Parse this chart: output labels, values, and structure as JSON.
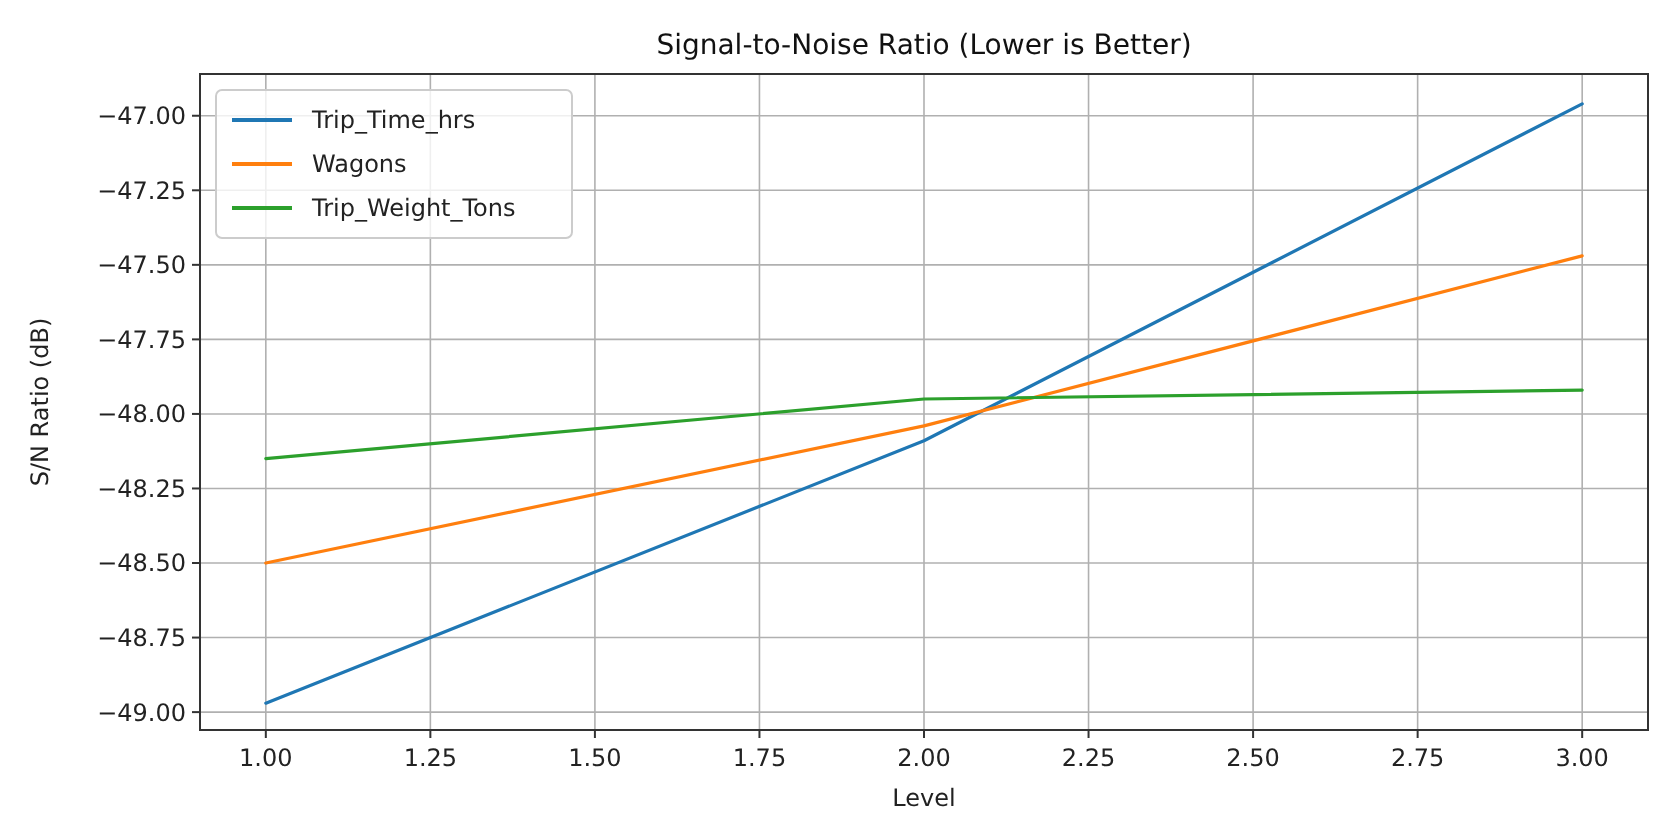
{
  "chart_data": {
    "type": "line",
    "title": "Signal-to-Noise Ratio (Lower is Better)",
    "xlabel": "Level",
    "ylabel": "S/N Ratio (dB)",
    "x": [
      1,
      2,
      3
    ],
    "series": [
      {
        "name": "Trip_Time_hrs",
        "color": "#1f77b4",
        "values": [
          -48.97,
          -48.09,
          -46.96
        ]
      },
      {
        "name": "Wagons",
        "color": "#ff7f0e",
        "values": [
          -48.5,
          -48.04,
          -47.47
        ]
      },
      {
        "name": "Trip_Weight_Tons",
        "color": "#2ca02c",
        "values": [
          -48.15,
          -47.95,
          -47.92
        ]
      }
    ],
    "xlim": [
      0.9,
      3.1
    ],
    "ylim": [
      -49.06,
      -46.86
    ],
    "xticks": [
      {
        "value": 1,
        "label": "1.00"
      },
      {
        "value": 1.25,
        "label": "1.25"
      },
      {
        "value": 1.5,
        "label": "1.50"
      },
      {
        "value": 1.75,
        "label": "1.75"
      },
      {
        "value": 2,
        "label": "2.00"
      },
      {
        "value": 2.25,
        "label": "2.25"
      },
      {
        "value": 2.5,
        "label": "2.50"
      },
      {
        "value": 2.75,
        "label": "2.75"
      },
      {
        "value": 3,
        "label": "3.00"
      }
    ],
    "yticks": [
      {
        "value": -49,
        "label": "−49.00"
      },
      {
        "value": -48.75,
        "label": "−48.75"
      },
      {
        "value": -48.5,
        "label": "−48.50"
      },
      {
        "value": -48.25,
        "label": "−48.25"
      },
      {
        "value": -48,
        "label": "−48.00"
      },
      {
        "value": -47.75,
        "label": "−47.75"
      },
      {
        "value": -47.5,
        "label": "−47.50"
      },
      {
        "value": -47.25,
        "label": "−47.25"
      },
      {
        "value": -47,
        "label": "−47.00"
      }
    ],
    "grid": true,
    "legend": "top left",
    "marker": "none",
    "line_style": "solid"
  }
}
